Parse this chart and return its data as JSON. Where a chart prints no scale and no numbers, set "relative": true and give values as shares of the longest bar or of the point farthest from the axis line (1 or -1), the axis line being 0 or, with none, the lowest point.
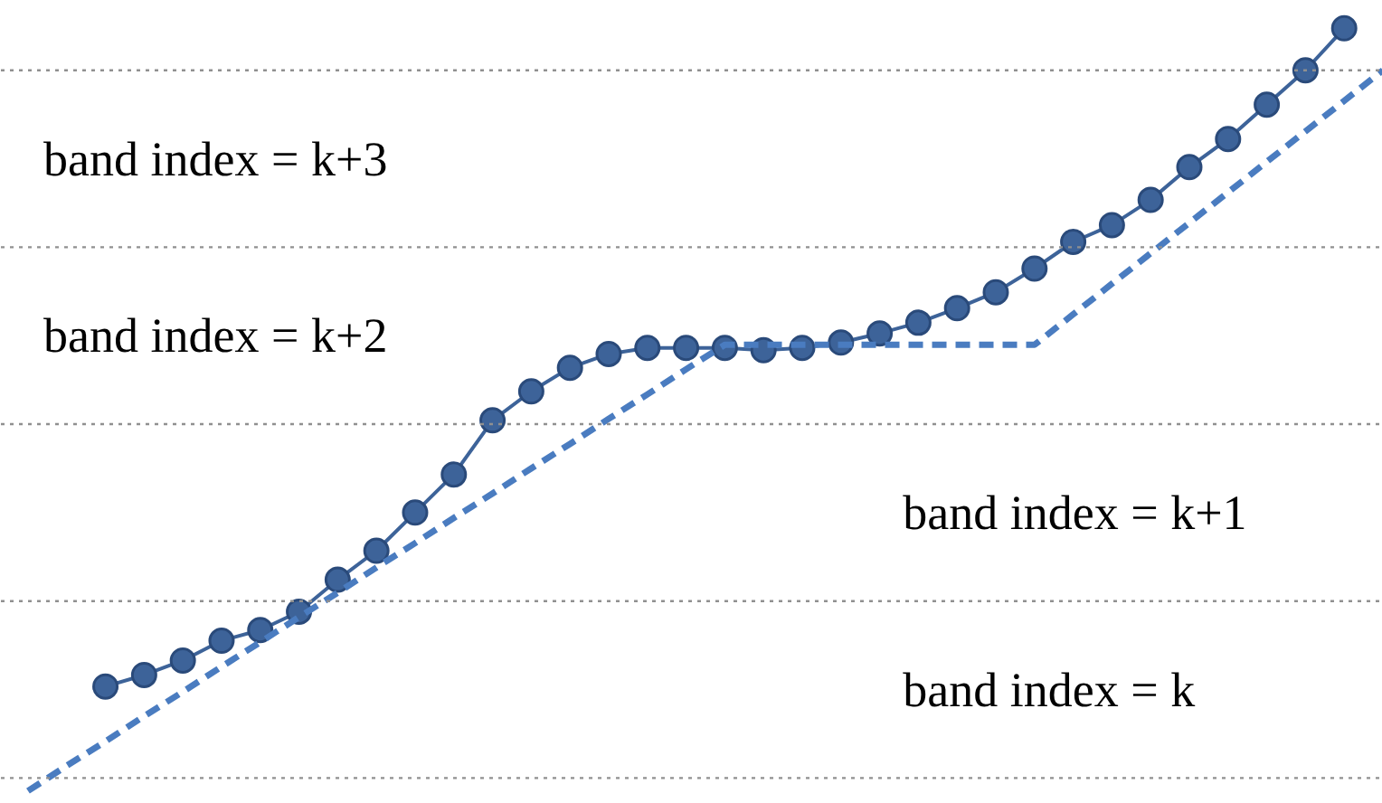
{
  "chart_data": {
    "type": "line",
    "relative": true,
    "categories": [
      null,
      null,
      null,
      null,
      null,
      null,
      null,
      null,
      null,
      null,
      null,
      null,
      null,
      null,
      null,
      null,
      null,
      null,
      null,
      null,
      null,
      null,
      null,
      null,
      null,
      null,
      null,
      null,
      null,
      null,
      null,
      null,
      null,
      null,
      null,
      null
    ],
    "series": [
      {
        "color": "#3d6399",
        "marker": "circle",
        "line_style": "solid",
        "values": [
          null,
          null,
          0.137,
          0.152,
          0.171,
          0.197,
          0.211,
          0.235,
          0.277,
          0.315,
          0.365,
          0.415,
          0.486,
          0.524,
          0.555,
          0.573,
          0.581,
          0.581,
          0.581,
          0.578,
          0.581,
          0.588,
          0.6,
          0.614,
          0.633,
          0.654,
          0.685,
          0.72,
          0.742,
          0.775,
          0.818,
          0.855,
          0.9,
          0.945,
          1.0,
          null
        ]
      },
      {
        "color": "#4a7cc0",
        "marker": "none",
        "line_style": "dashed",
        "values": [
          0,
          0.033,
          0.065,
          0.098,
          0.13,
          0.163,
          0.195,
          0.228,
          0.26,
          0.293,
          0.325,
          0.358,
          0.39,
          0.423,
          0.455,
          0.488,
          0.52,
          0.553,
          0.585,
          0.585,
          0.585,
          0.585,
          0.585,
          0.585,
          0.585,
          0.585,
          0.585,
          0.625,
          0.665,
          0.705,
          0.745,
          0.785,
          0.825,
          0.865,
          0.905,
          0.945
        ]
      }
    ],
    "ref_lines": [
      {
        "axis": "y",
        "value": 0.945,
        "color": "#909090",
        "line_style": "dotted"
      },
      {
        "axis": "y",
        "value": 0.713,
        "color": "#909090",
        "line_style": "dotted"
      },
      {
        "axis": "y",
        "value": 0.481,
        "color": "#909090",
        "line_style": "dotted"
      },
      {
        "axis": "y",
        "value": 0.249,
        "color": "#909090",
        "line_style": "dotted"
      },
      {
        "axis": "y",
        "value": 0.017,
        "color": "#909090",
        "line_style": "dotted"
      }
    ],
    "annotations": [
      "band index = k+3",
      "band index = k+2",
      "band index = k+1",
      "band index = k"
    ],
    "grid": false,
    "tick_labels": false
  }
}
